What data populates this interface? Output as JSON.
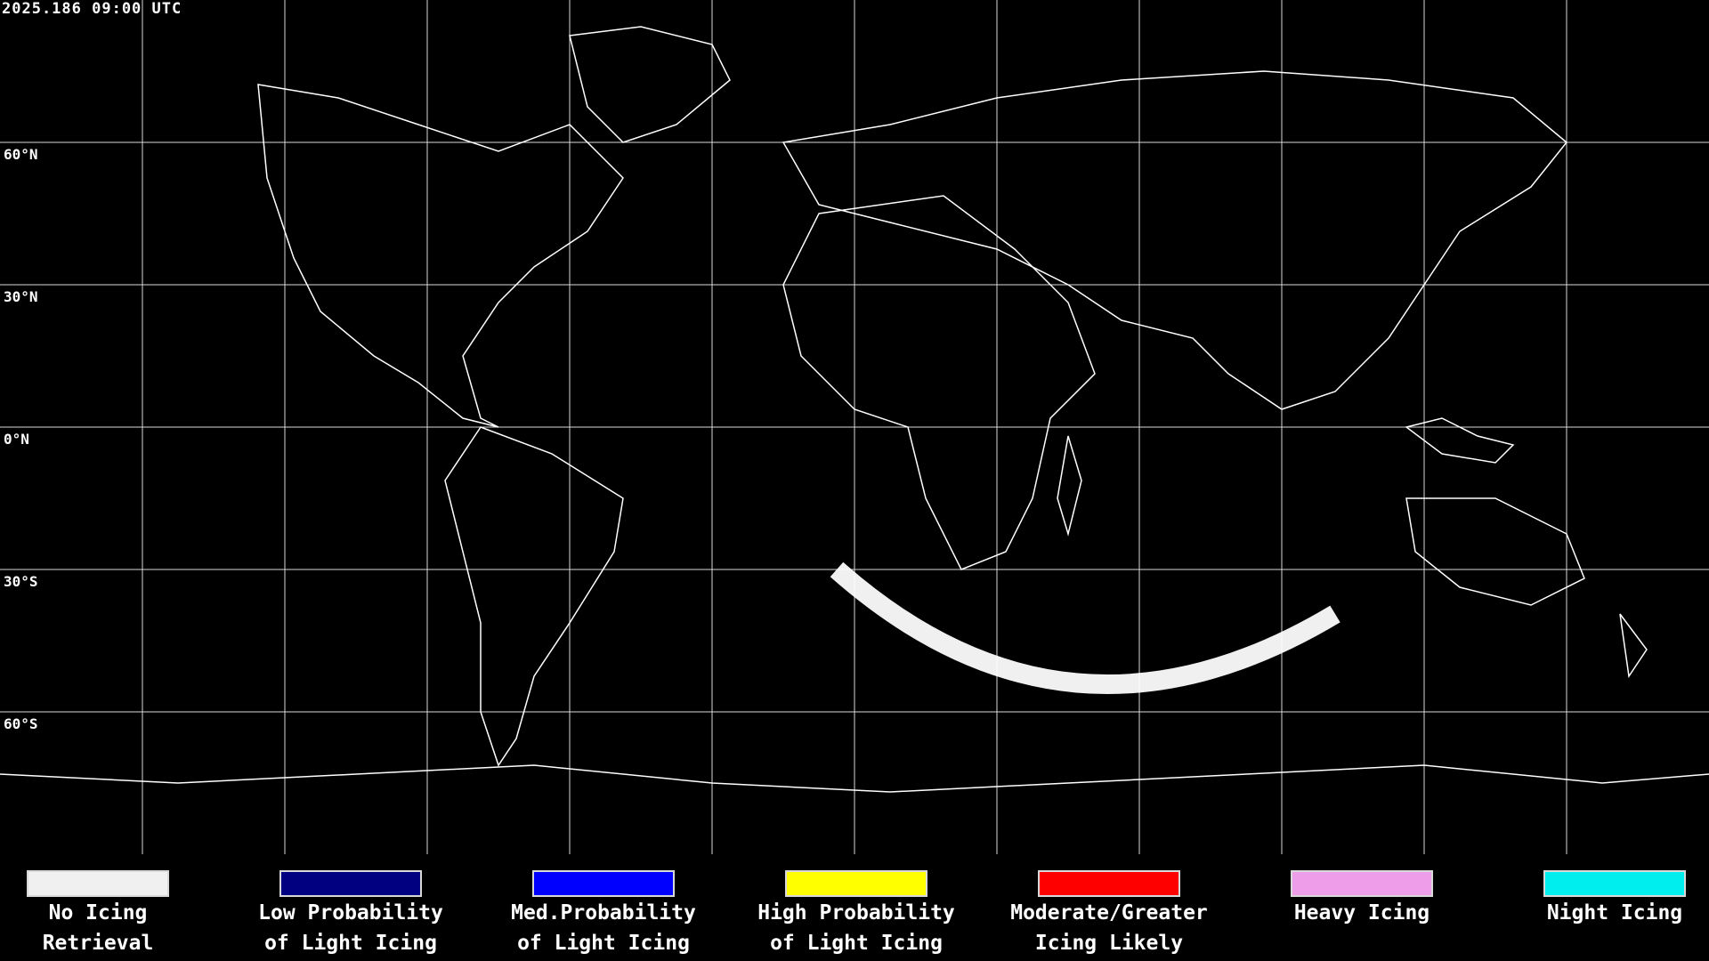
{
  "header": {
    "timestamp": "2025.186 09:00 UTC"
  },
  "map": {
    "projection": "global cylindrical equidistant",
    "graticule": "lines every 15 degrees",
    "lat_labels": [
      "60°N",
      "30°N",
      "0°N",
      "30°S",
      "60°S"
    ],
    "colors": {
      "background": "#000000",
      "coastline": "#ffffff",
      "grid": "#ffffff"
    }
  },
  "legend": {
    "items": [
      {
        "line1": "No Icing",
        "line2": "Retrieval",
        "color": "#f0f0f0"
      },
      {
        "line1": "Low Probability",
        "line2": "of Light Icing",
        "color": "#000080"
      },
      {
        "line1": "Med.Probability",
        "line2": "of Light Icing",
        "color": "#0000ff"
      },
      {
        "line1": "High Probability",
        "line2": "of Light Icing",
        "color": "#ffff00"
      },
      {
        "line1": "Moderate/Greater",
        "line2": "Icing Likely",
        "color": "#ff0000"
      },
      {
        "line1": "Heavy Icing",
        "line2": "",
        "color": "#ee9ee8"
      },
      {
        "line1": "Night Icing",
        "line2": "",
        "color": "#00eeee"
      }
    ]
  }
}
